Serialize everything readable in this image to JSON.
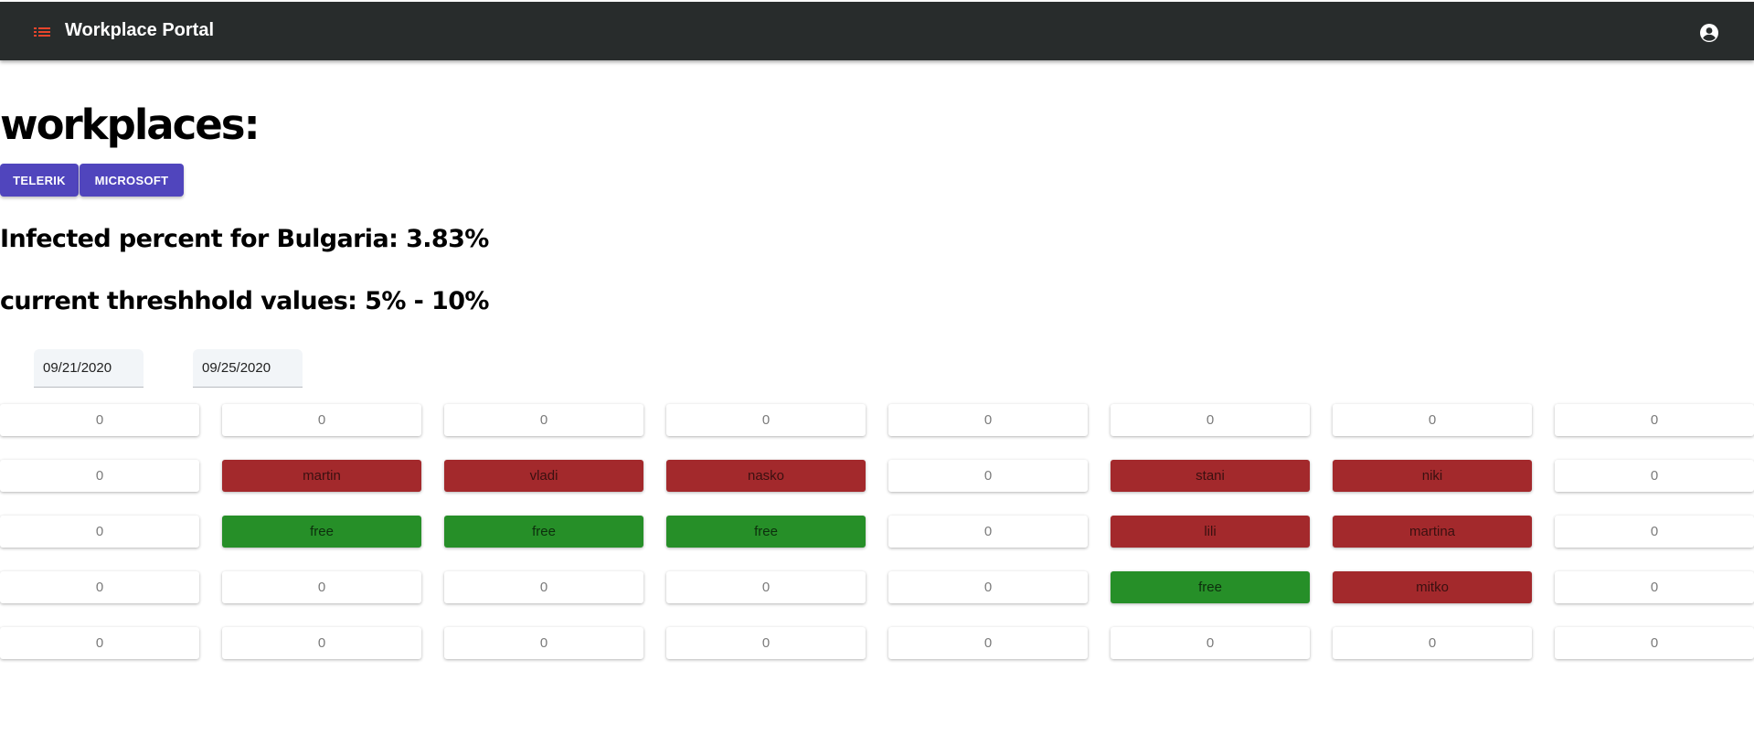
{
  "header": {
    "title": "Workplace Portal",
    "menu_icon": "list-icon",
    "account_icon": "account-circle-icon",
    "background_color": "#282c2c",
    "menu_icon_color": "#e8452c"
  },
  "main": {
    "heading": "workplaces:",
    "companies": [
      "TELERIK",
      "MICROSOFT"
    ],
    "infected_text": "Infected percent for Bulgaria: 3.83%",
    "threshold_text": "current threshhold values: 5% - 10%",
    "start_date": "09/21/2020",
    "end_date": "09/25/2020"
  },
  "colors": {
    "button": "#5045bd",
    "occupied": "#a3292c",
    "free": "#268f28",
    "empty": "#ffffff"
  },
  "grid": [
    [
      {
        "label": "0",
        "state": "empty"
      },
      {
        "label": "0",
        "state": "empty"
      },
      {
        "label": "0",
        "state": "empty"
      },
      {
        "label": "0",
        "state": "empty"
      },
      {
        "label": "0",
        "state": "empty"
      },
      {
        "label": "0",
        "state": "empty"
      },
      {
        "label": "0",
        "state": "empty"
      },
      {
        "label": "0",
        "state": "empty"
      }
    ],
    [
      {
        "label": "0",
        "state": "empty"
      },
      {
        "label": "martin",
        "state": "occupied"
      },
      {
        "label": "vladi",
        "state": "occupied"
      },
      {
        "label": "nasko",
        "state": "occupied"
      },
      {
        "label": "0",
        "state": "empty"
      },
      {
        "label": "stani",
        "state": "occupied"
      },
      {
        "label": "niki",
        "state": "occupied"
      },
      {
        "label": "0",
        "state": "empty"
      }
    ],
    [
      {
        "label": "0",
        "state": "empty"
      },
      {
        "label": "free",
        "state": "free"
      },
      {
        "label": "free",
        "state": "free"
      },
      {
        "label": "free",
        "state": "free"
      },
      {
        "label": "0",
        "state": "empty"
      },
      {
        "label": "lili",
        "state": "occupied"
      },
      {
        "label": "martina",
        "state": "occupied"
      },
      {
        "label": "0",
        "state": "empty"
      }
    ],
    [
      {
        "label": "0",
        "state": "empty"
      },
      {
        "label": "0",
        "state": "empty"
      },
      {
        "label": "0",
        "state": "empty"
      },
      {
        "label": "0",
        "state": "empty"
      },
      {
        "label": "0",
        "state": "empty"
      },
      {
        "label": "free",
        "state": "free"
      },
      {
        "label": "mitko",
        "state": "occupied"
      },
      {
        "label": "0",
        "state": "empty"
      }
    ],
    [
      {
        "label": "0",
        "state": "empty"
      },
      {
        "label": "0",
        "state": "empty"
      },
      {
        "label": "0",
        "state": "empty"
      },
      {
        "label": "0",
        "state": "empty"
      },
      {
        "label": "0",
        "state": "empty"
      },
      {
        "label": "0",
        "state": "empty"
      },
      {
        "label": "0",
        "state": "empty"
      },
      {
        "label": "0",
        "state": "empty"
      }
    ]
  ]
}
